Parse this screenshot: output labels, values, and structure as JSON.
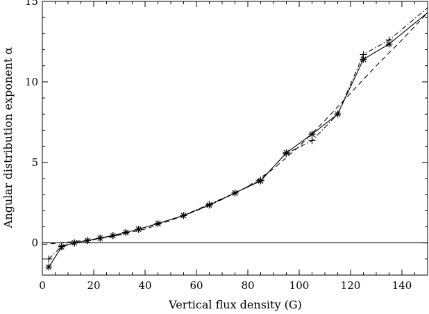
{
  "chart_data": {
    "type": "line",
    "xlabel": "Vertical flux density (G)",
    "ylabel": "Angular distribution exponent α",
    "xlim": [
      0,
      150
    ],
    "ylim": [
      -2,
      15
    ],
    "x_ticks": [
      0,
      20,
      40,
      60,
      80,
      100,
      120,
      140
    ],
    "y_ticks": [
      0,
      5,
      10,
      15
    ],
    "grid": false,
    "reference_line_y": 0,
    "series": [
      {
        "style": "solid",
        "marker": "asterisk",
        "x": [
          2.5,
          7.5,
          12.5,
          17.5,
          22.5,
          27.5,
          32.5,
          37.5,
          45,
          55,
          65,
          75,
          85,
          95,
          105,
          115,
          125,
          135,
          150
        ],
        "values": [
          -1.5,
          -0.25,
          0.0,
          0.15,
          0.3,
          0.45,
          0.65,
          0.85,
          1.2,
          1.7,
          2.35,
          3.1,
          3.85,
          5.6,
          6.75,
          8.0,
          11.4,
          12.35,
          14.3
        ]
      },
      {
        "style": "dash-dot",
        "marker": "plus",
        "x": [
          2.5,
          7.5,
          12.5,
          17.5,
          22.5,
          27.5,
          32.5,
          37.5,
          45,
          55,
          65,
          75,
          85,
          95,
          105,
          115,
          125,
          135,
          150
        ],
        "values": [
          -1.0,
          -0.2,
          0.0,
          0.15,
          0.3,
          0.45,
          0.65,
          0.85,
          1.2,
          1.7,
          2.4,
          3.1,
          3.9,
          5.55,
          6.35,
          8.0,
          11.7,
          12.6,
          14.6
        ]
      },
      {
        "style": "dashed",
        "marker": "none",
        "x": [
          0,
          10,
          20,
          30,
          40,
          50,
          60,
          70,
          80,
          90,
          100,
          110,
          120,
          130,
          140,
          150
        ],
        "values": [
          -0.1,
          0.05,
          0.2,
          0.5,
          0.85,
          1.4,
          2.0,
          2.7,
          3.5,
          4.6,
          6.0,
          7.6,
          9.3,
          11.0,
          12.6,
          14.3
        ]
      }
    ]
  }
}
